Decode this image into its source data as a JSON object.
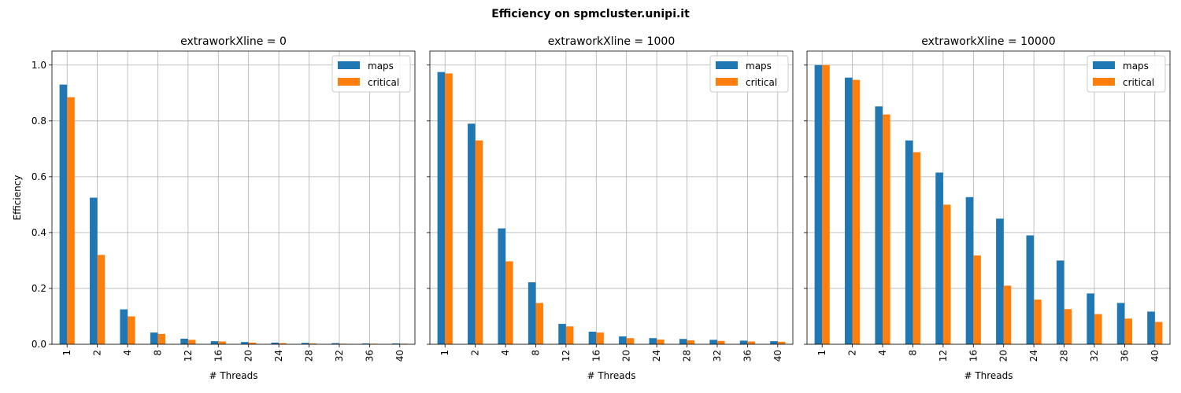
{
  "figure": {
    "suptitle": "Efficiency on spmcluster.unipi.it"
  },
  "colors": {
    "maps": "#1f77b4",
    "critical": "#ff7f0e",
    "grid": "#b0b0b0"
  },
  "chart_data": [
    {
      "type": "bar",
      "title": "extraworkXline = 0",
      "xlabel": "# Threads",
      "ylabel": "Efficiency",
      "ylim": [
        0,
        1.05
      ],
      "yticks": [
        0.0,
        0.2,
        0.4,
        0.6,
        0.8,
        1.0
      ],
      "grid": true,
      "legend_position": "top-right",
      "categories": [
        "1",
        "2",
        "4",
        "8",
        "12",
        "16",
        "20",
        "24",
        "28",
        "32",
        "36",
        "40"
      ],
      "series": [
        {
          "name": "maps",
          "values": [
            0.93,
            0.525,
            0.125,
            0.042,
            0.02,
            0.011,
            0.008,
            0.006,
            0.005,
            0.004,
            0.003,
            0.003
          ]
        },
        {
          "name": "critical",
          "values": [
            0.885,
            0.32,
            0.1,
            0.037,
            0.016,
            0.01,
            0.006,
            0.004,
            0.003,
            0.002,
            0.002,
            0.002
          ]
        }
      ]
    },
    {
      "type": "bar",
      "title": "extraworkXline = 1000",
      "xlabel": "# Threads",
      "ylabel": "",
      "ylim": [
        0,
        1.05
      ],
      "yticks": [
        0.0,
        0.2,
        0.4,
        0.6,
        0.8,
        1.0
      ],
      "grid": true,
      "legend_position": "top-right",
      "categories": [
        "1",
        "2",
        "4",
        "8",
        "12",
        "16",
        "20",
        "24",
        "28",
        "32",
        "36",
        "40"
      ],
      "series": [
        {
          "name": "maps",
          "values": [
            0.975,
            0.79,
            0.415,
            0.222,
            0.073,
            0.045,
            0.028,
            0.022,
            0.019,
            0.016,
            0.013,
            0.011
          ]
        },
        {
          "name": "critical",
          "values": [
            0.97,
            0.73,
            0.297,
            0.148,
            0.064,
            0.042,
            0.022,
            0.017,
            0.014,
            0.012,
            0.01,
            0.009
          ]
        }
      ]
    },
    {
      "type": "bar",
      "title": "extraworkXline = 10000",
      "xlabel": "# Threads",
      "ylabel": "",
      "ylim": [
        0,
        1.05
      ],
      "yticks": [
        0.0,
        0.2,
        0.4,
        0.6,
        0.8,
        1.0
      ],
      "grid": true,
      "legend_position": "top-right",
      "categories": [
        "1",
        "2",
        "4",
        "8",
        "12",
        "16",
        "20",
        "24",
        "28",
        "32",
        "36",
        "40"
      ],
      "series": [
        {
          "name": "maps",
          "values": [
            1.0,
            0.955,
            0.852,
            0.73,
            0.615,
            0.527,
            0.45,
            0.39,
            0.3,
            0.182,
            0.148,
            0.117
          ]
        },
        {
          "name": "critical",
          "values": [
            1.0,
            0.947,
            0.823,
            0.688,
            0.5,
            0.318,
            0.21,
            0.16,
            0.126,
            0.108,
            0.092,
            0.08
          ]
        }
      ]
    }
  ]
}
